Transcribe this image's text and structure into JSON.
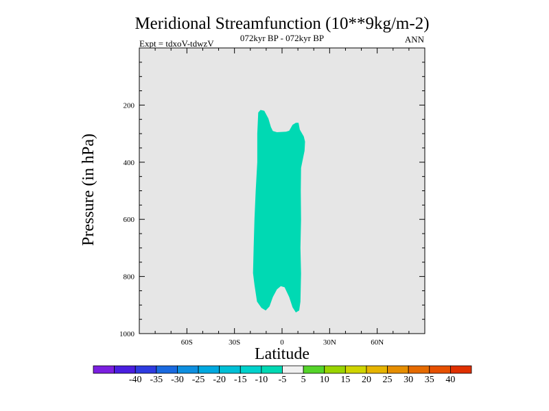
{
  "chart_data": {
    "type": "contour",
    "title": "Meridional Streamfunction (10**9kg/m-2)",
    "subtitle_left": "Expt = tdxoV-tdwzV",
    "subtitle_center": "072kyr BP - 072kyr BP",
    "subtitle_right": "ANN",
    "xlabel": "Latitude",
    "ylabel": "Pressure (in hPa)",
    "xlim": [
      -90,
      90
    ],
    "ylim": [
      1000,
      0
    ],
    "x_ticks": [
      -60,
      -30,
      0,
      30,
      60
    ],
    "x_tick_labels": [
      "60S",
      "30S",
      "0",
      "30N",
      "60N"
    ],
    "y_ticks": [
      200,
      400,
      600,
      800,
      1000
    ],
    "y_tick_labels": [
      "200",
      "400",
      "600",
      "800",
      "1000"
    ],
    "background_color": "#e6e6e6",
    "filled_region": {
      "level_range": [
        -10,
        -5
      ],
      "color": "#00d9b3",
      "outline": [
        [
          -15.0,
          226
        ],
        [
          -13.6,
          217
        ],
        [
          -11.2,
          220
        ],
        [
          -8.6,
          247
        ],
        [
          -7.0,
          277
        ],
        [
          -5.8,
          291
        ],
        [
          -3.2,
          295
        ],
        [
          2.5,
          293
        ],
        [
          4.5,
          290
        ],
        [
          6.6,
          269
        ],
        [
          8.7,
          262
        ],
        [
          10.4,
          262
        ],
        [
          11.2,
          286
        ],
        [
          13.7,
          310
        ],
        [
          14.5,
          328
        ],
        [
          14.2,
          360
        ],
        [
          12.0,
          420
        ],
        [
          11.8,
          500
        ],
        [
          12.0,
          600
        ],
        [
          11.6,
          700
        ],
        [
          12.0,
          790
        ],
        [
          11.6,
          888
        ],
        [
          10.8,
          919
        ],
        [
          8.7,
          926
        ],
        [
          6.6,
          908
        ],
        [
          4.5,
          872
        ],
        [
          1.6,
          838
        ],
        [
          -0.8,
          834
        ],
        [
          -3.2,
          845
        ],
        [
          -5.8,
          872
        ],
        [
          -7.9,
          905
        ],
        [
          -10.3,
          919
        ],
        [
          -13.0,
          910
        ],
        [
          -15.8,
          888
        ],
        [
          -17.4,
          829
        ],
        [
          -18.3,
          788
        ],
        [
          -17.9,
          700
        ],
        [
          -17.4,
          600
        ],
        [
          -16.6,
          500
        ],
        [
          -15.6,
          400
        ],
        [
          -15.6,
          300
        ]
      ]
    },
    "colorbar": {
      "tick_labels": [
        "-40",
        "-35",
        "-30",
        "-25",
        "-20",
        "-15",
        "-10",
        "-5",
        "5",
        "10",
        "15",
        "20",
        "25",
        "30",
        "35",
        "40"
      ],
      "colors": [
        "#7b1fe0",
        "#4a1ee0",
        "#2e3be0",
        "#1a6ae0",
        "#0e8fe0",
        "#00a9e0",
        "#00c0d6",
        "#00d2cc",
        "#00d9b3",
        "#f0f0f0",
        "#55d42a",
        "#99d400",
        "#cfd400",
        "#e6b400",
        "#e68e00",
        "#e66b00",
        "#e65000",
        "#e03000"
      ]
    }
  }
}
